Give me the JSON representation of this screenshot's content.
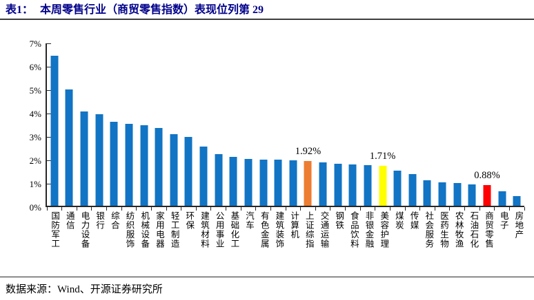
{
  "title": {
    "prefix": "表1：",
    "text": "本周零售行业（商贸零售指数）表现位列第 29"
  },
  "footer": {
    "text": "数据来源：Wind、开源证券研究所"
  },
  "colors": {
    "title_color": "#00008B",
    "bar_default": "#1274C4",
    "bar_index_orange": "#ED7D31",
    "bar_highlight_yellow": "#FFFF00",
    "bar_highlight_red": "#FF0000",
    "axis_color": "#262626"
  },
  "chart_data": {
    "type": "bar",
    "title": "本周零售行业（商贸零售指数）表现位列第 29",
    "xlabel": "",
    "ylabel": "",
    "ylim": [
      0,
      7
    ],
    "grid": false,
    "legend": false,
    "y_ticks": [
      "0%",
      "1%",
      "2%",
      "3%",
      "4%",
      "5%",
      "6%",
      "7%"
    ],
    "categories": [
      "国防军工",
      "通信",
      "电力设备",
      "银行",
      "综合",
      "纺织服饰",
      "机械设备",
      "家用电器",
      "轻工制造",
      "环保",
      "建筑材料",
      "公用事业",
      "基础化工",
      "汽车",
      "有色金属",
      "建筑装饰",
      "计算机",
      "上证综指",
      "交通运输",
      "钢铁",
      "食品饮料",
      "非银金融",
      "美容护理",
      "煤炭",
      "传媒",
      "社会服务",
      "医药生物",
      "农林牧渔",
      "石油石化",
      "商贸零售",
      "电子",
      "房地产"
    ],
    "values": [
      6.4,
      4.97,
      4.03,
      3.9,
      3.58,
      3.5,
      3.44,
      3.31,
      3.05,
      2.93,
      2.53,
      2.22,
      2.08,
      2.01,
      1.98,
      1.97,
      1.93,
      1.92,
      1.85,
      1.8,
      1.76,
      1.73,
      1.71,
      1.51,
      1.36,
      1.09,
      1.0,
      0.97,
      0.92,
      0.88,
      0.62,
      0.4
    ],
    "highlights": [
      {
        "index": 17,
        "category": "上证综指",
        "color_key": "bar_index_orange",
        "label": "1.92%"
      },
      {
        "index": 22,
        "category": "美容护理",
        "color_key": "bar_highlight_yellow",
        "label": "1.71%"
      },
      {
        "index": 29,
        "category": "商贸零售",
        "color_key": "bar_highlight_red",
        "label": "0.88%"
      }
    ]
  }
}
